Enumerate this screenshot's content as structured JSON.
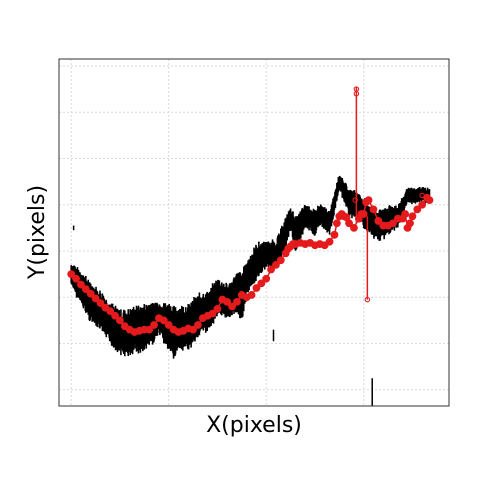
{
  "chart_data": {
    "type": "scatter",
    "title": "",
    "xlabel": "X(pixels)",
    "ylabel": "Y(pixels)",
    "xlim": [
      -50,
      1550
    ],
    "ylim": [
      -30,
      1470
    ],
    "grid": true,
    "grid_x": [
      0,
      400,
      800,
      1200
    ],
    "grid_y": [
      0,
      200,
      400,
      600,
      800,
      1000,
      1200,
      1400
    ],
    "series": [
      {
        "style": "black-band",
        "color": "#000000",
        "x": [
          0,
          40,
          80,
          120,
          160,
          200,
          240,
          260,
          280,
          320,
          360,
          400,
          420,
          440,
          480,
          520,
          560,
          600,
          640,
          680,
          700,
          720,
          760,
          800,
          840,
          880,
          900,
          920,
          960,
          1000,
          1020,
          1060,
          1100,
          1140,
          1180,
          1220,
          1260,
          1300,
          1340,
          1360,
          1380,
          1410,
          1440,
          1470
        ],
        "y": [
          900,
          960,
          1020,
          1060,
          1110,
          1150,
          1160,
          1130,
          1140,
          1120,
          1090,
          1130,
          1150,
          1140,
          1130,
          1080,
          1060,
          1000,
          1020,
          980,
          1000,
          920,
          850,
          810,
          820,
          720,
          660,
          730,
          650,
          680,
          640,
          680,
          500,
          590,
          610,
          660,
          690,
          670,
          650,
          610,
          560,
          560,
          555,
          560
        ],
        "half_width": [
          40,
          60,
          70,
          70,
          75,
          80,
          85,
          80,
          85,
          80,
          60,
          85,
          90,
          80,
          80,
          75,
          70,
          65,
          60,
          70,
          90,
          60,
          65,
          45,
          50,
          55,
          40,
          60,
          40,
          45,
          35,
          40,
          30,
          45,
          50,
          55,
          55,
          50,
          40,
          30,
          25,
          25,
          25,
          25
        ]
      },
      {
        "style": "red-trace",
        "color": "#e41a1c",
        "x": [
          0,
          20,
          40,
          60,
          80,
          100,
          120,
          140,
          160,
          180,
          200,
          220,
          240,
          260,
          280,
          300,
          320,
          340,
          360,
          380,
          400,
          420,
          440,
          460,
          480,
          500,
          520,
          540,
          560,
          580,
          600,
          620,
          640,
          660,
          680,
          700,
          720,
          740,
          760,
          780,
          800,
          820,
          840,
          860,
          880,
          890,
          900,
          910,
          920,
          940,
          960,
          980,
          1000,
          1020,
          1040,
          1060,
          1080,
          1090,
          1100,
          1110,
          1120,
          1130,
          1140,
          1160,
          1180,
          1190,
          1200,
          1210,
          1220,
          1240,
          1260,
          1280,
          1300,
          1320,
          1340,
          1360,
          1370,
          1380,
          1390,
          1400,
          1420,
          1440,
          1460,
          1470
        ],
        "y": [
          900,
          920,
          945,
          965,
          985,
          1005,
          1025,
          1045,
          1060,
          1080,
          1100,
          1125,
          1140,
          1150,
          1145,
          1140,
          1140,
          1120,
          1090,
          1100,
          1120,
          1140,
          1150,
          1145,
          1135,
          1140,
          1120,
          1090,
          1080,
          1070,
          1050,
          1010,
          1020,
          1040,
          1020,
          990,
          1000,
          990,
          960,
          940,
          920,
          880,
          860,
          840,
          810,
          790,
          780,
          770,
          770,
          765,
          770,
          765,
          775,
          770,
          775,
          760,
          730,
          680,
          650,
          640,
          650,
          655,
          680,
          700,
          660,
          640,
          640,
          590,
          580,
          620,
          670,
          690,
          690,
          680,
          660,
          660,
          640,
          700,
          680,
          650,
          620,
          600,
          570,
          580
        ],
        "spikes": [
          {
            "x": 1170,
            "y_from": 680,
            "y_to": 90
          },
          {
            "x": 1215,
            "y_from": 650,
            "y_to": 1010
          }
        ],
        "open_markers": [
          {
            "x": 1170,
            "y": 100
          },
          {
            "x": 1170,
            "y": 120
          },
          {
            "x": 1165,
            "y": 580
          },
          {
            "x": 1215,
            "y": 1010
          },
          {
            "x": 1200,
            "y": 635
          },
          {
            "x": 1440,
            "y": 560
          },
          {
            "x": 1375,
            "y": 700
          }
        ]
      }
    ],
    "outliers": [
      {
        "x": 1235,
        "y_from": 1350,
        "y_to": 1470,
        "color": "#000000"
      },
      {
        "x": 830,
        "y_from": 1140,
        "y_to": 1190,
        "color": "#000000"
      },
      {
        "x": 10,
        "y_from": 690,
        "y_to": 710,
        "color": "#000000"
      }
    ]
  }
}
